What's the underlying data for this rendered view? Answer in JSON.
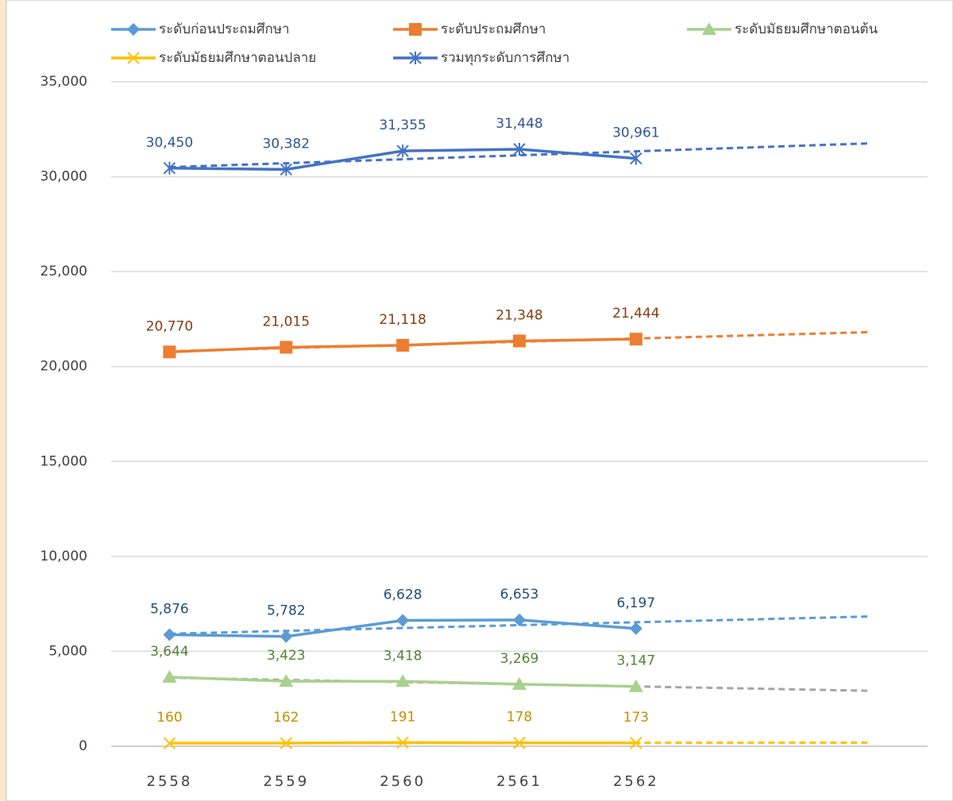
{
  "chart_data": {
    "type": "line",
    "categories": [
      "2558",
      "2559",
      "2560",
      "2561",
      "2562",
      null,
      null
    ],
    "ylim": [
      0,
      35000
    ],
    "yticks": [
      0,
      {
        "value": 5000,
        "label": "5,000"
      },
      {
        "value": 10000,
        "label": "10,000"
      },
      {
        "value": 15000,
        "label": "15,000"
      },
      {
        "value": 20000,
        "label": "20,000"
      },
      {
        "value": 25000,
        "label": "25,000"
      },
      {
        "value": 30000,
        "label": "30,000"
      },
      {
        "value": 35000,
        "label": "35,000"
      }
    ],
    "grid": true,
    "legend": "top",
    "trendline": "linear",
    "series": [
      {
        "name": "ระดับก่อนประถมศึกษา",
        "color": "#5b9bd5",
        "trend_color": "#5b9bd5",
        "label_color": "#1f4e79",
        "marker": "diamond",
        "values": [
          5876,
          5782,
          6628,
          6653,
          6197,
          null,
          null
        ],
        "value_labels": [
          "5,876",
          "5,782",
          "6,628",
          "6,653",
          "6,197",
          null,
          null
        ]
      },
      {
        "name": "ระดับประถมศึกษา",
        "color": "#ed7d31",
        "trend_color": "#ed7d31",
        "label_color": "#843c0c",
        "marker": "square",
        "values": [
          20770,
          21015,
          21118,
          21348,
          21444,
          null,
          null
        ],
        "value_labels": [
          "20,770",
          "21,015",
          "21,118",
          "21,348",
          "21,444",
          null,
          null
        ]
      },
      {
        "name": "ระดับมัธยมศึกษาตอนต้น",
        "color": "#a9d18e",
        "trend_color": "#a5a5a5",
        "label_color": "#548235",
        "marker": "triangle",
        "values": [
          3644,
          3423,
          3418,
          3269,
          3147,
          null,
          null
        ],
        "value_labels": [
          "3,644",
          "3,423",
          "3,418",
          "3,269",
          "3,147",
          null,
          null
        ]
      },
      {
        "name": "ระดับมัธยมศึกษาตอนปลาย",
        "color": "#ffc000",
        "trend_color": "#ffc000",
        "label_color": "#bf9000",
        "marker": "x",
        "values": [
          160,
          162,
          191,
          178,
          173,
          null,
          null
        ],
        "value_labels": [
          "160",
          "162",
          "191",
          "178",
          "173",
          null,
          null
        ]
      },
      {
        "name": "รวมทุกระดับการศึกษา",
        "color": "#4472c4",
        "trend_color": "#4472c4",
        "label_color": "#2f5597",
        "marker": "star",
        "values": [
          30450,
          30382,
          31355,
          31448,
          30961,
          null,
          null
        ],
        "value_labels": [
          "30,450",
          "30,382",
          "31,355",
          "31,448",
          "30,961",
          null,
          null
        ]
      }
    ]
  }
}
